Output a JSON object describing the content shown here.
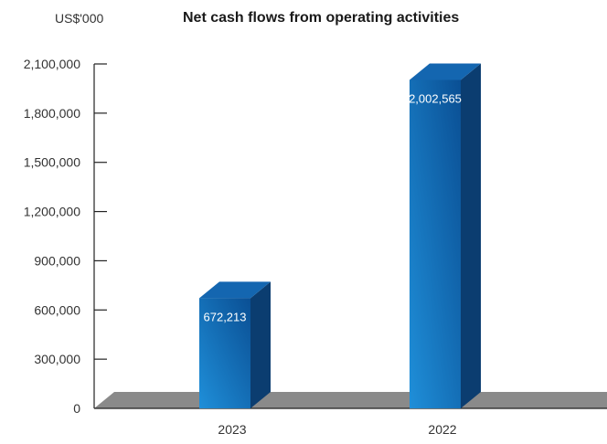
{
  "chart_data": {
    "type": "bar",
    "title": "Net cash flows from operating activities",
    "unit_label": "US$'000",
    "categories": [
      "2023",
      "2022"
    ],
    "values": [
      672213,
      2002565
    ],
    "value_labels": [
      "672,213",
      "2,002,565"
    ],
    "yticks": [
      0,
      300000,
      600000,
      900000,
      1200000,
      1500000,
      1800000,
      2100000
    ],
    "ytick_labels": [
      "0",
      "300,000",
      "600,000",
      "900,000",
      "1,200,000",
      "1,500,000",
      "1,800,000",
      "2,100,000"
    ],
    "ylim": [
      0,
      2100000
    ],
    "xlabel": "",
    "ylabel": "",
    "grid": false,
    "bar_colors": {
      "front_light": "#1f8fd9",
      "front_dark": "#0a4f94",
      "side": "#0b3d70",
      "top": "#1466b0"
    },
    "floor_color": "#8a8a8a"
  }
}
